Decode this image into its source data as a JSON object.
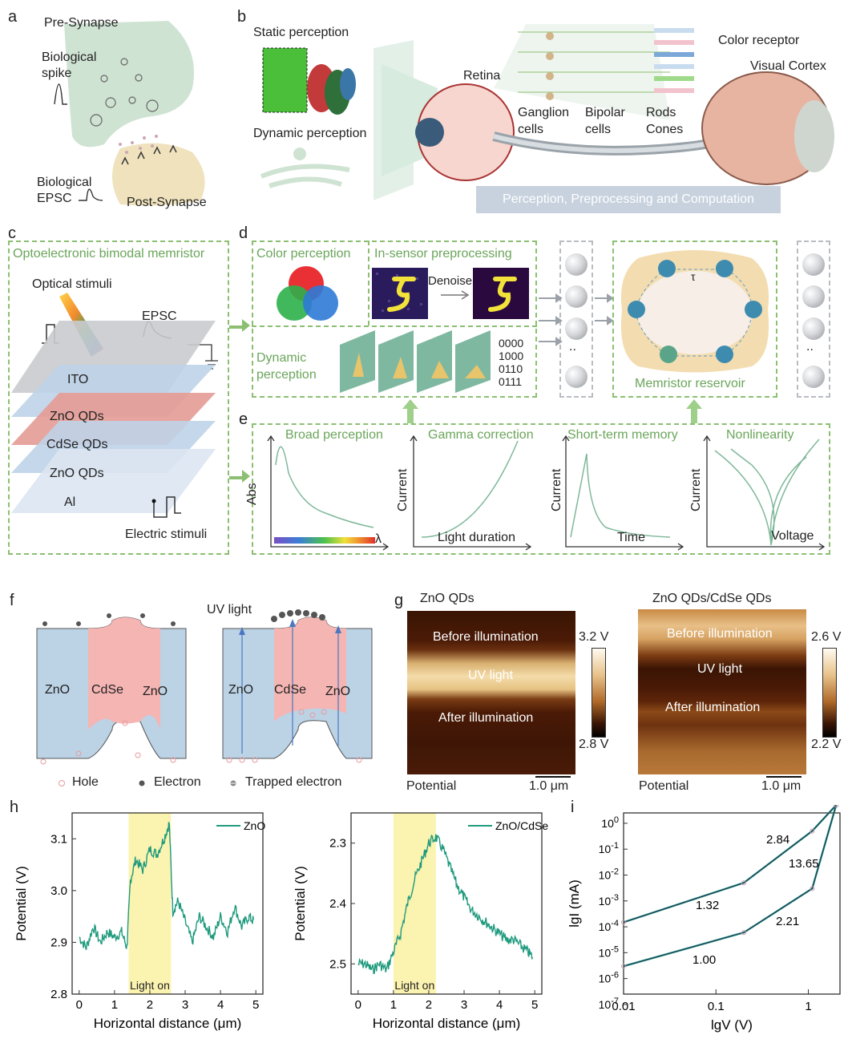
{
  "panels": {
    "a": "a",
    "b": "b",
    "c": "c",
    "d": "d",
    "e": "e",
    "f": "f",
    "g": "g",
    "h": "h",
    "i": "i"
  },
  "a": {
    "pre": "Pre-Synapse",
    "spike": "Biological\nspike",
    "epsc": "Biological\nEPSC",
    "post": "Post-Synapse"
  },
  "b": {
    "static": "Static perception",
    "dynamic": "Dynamic perception",
    "retina": "Retina",
    "ganglion": "Ganglion\ncells",
    "bipolar": "Bipolar\ncells",
    "rods": "Rods\nCones",
    "color_receptor": "Color receptor",
    "cortex": "Visual Cortex",
    "banner": "Perception, Preprocessing and Computation"
  },
  "c": {
    "title": "Optoelectronic bimodal memristor",
    "optical": "Optical stimuli",
    "epsc": "EPSC",
    "layers": [
      "ITO",
      "ZnO QDs",
      "CdSe QDs",
      "ZnO QDs",
      "Al"
    ],
    "electric": "Electric stimuli"
  },
  "d": {
    "color": "Color perception",
    "preprocess": "In-sensor preprocessing",
    "denoise": "Denoise",
    "dynamic": "Dynamic\nperception",
    "codes": [
      "0000",
      "1000",
      "0110",
      "0111"
    ],
    "dots": "..",
    "tau": "τ",
    "reservoir": "Memristor reservoir"
  },
  "e": {
    "titles": [
      "Broad perception",
      "Gamma correction",
      "Short-term memory",
      "Nonlinearity"
    ],
    "ylabels": [
      "Abs",
      "Current",
      "Current",
      "Current"
    ],
    "xlabels": [
      "λ",
      "Light duration",
      "Time",
      "Voltage"
    ]
  },
  "f": {
    "uv": "UV light",
    "left": [
      "ZnO",
      "CdSe",
      "ZnO"
    ],
    "right": [
      "ZnO",
      "CdSe",
      "ZnO"
    ],
    "legend": [
      "Hole",
      "Electron",
      "Trapped electron"
    ]
  },
  "g": {
    "left": {
      "title": "ZnO QDs",
      "bands": [
        "Before illumination",
        "UV light",
        "After illumination"
      ],
      "scale_top": "3.2 V",
      "scale_bottom": "2.8 V",
      "potential": "Potential",
      "bar": "1.0 μm"
    },
    "right": {
      "title": "ZnO QDs/CdSe QDs",
      "bands": [
        "Before illumination",
        "UV light",
        "After illumination"
      ],
      "scale_top": "2.6 V",
      "scale_bottom": "2.2 V",
      "potential": "Potential",
      "bar": "1.0 μm"
    }
  },
  "chart_data": [
    {
      "type": "line",
      "title": "",
      "legend": "ZnO",
      "xlabel": "Horizontal distance (μm)",
      "ylabel": "Potential (V)",
      "xlim": [
        -0.2,
        5.2
      ],
      "ylim": [
        2.8,
        3.15
      ],
      "xticks": [
        "0",
        "1",
        "2",
        "3",
        "4",
        "5"
      ],
      "yticks": [
        "2.8",
        "2.9",
        "3.0",
        "3.1"
      ],
      "highlight": [
        1.4,
        2.6
      ],
      "highlight_label": "Light on",
      "x": [
        0,
        0.2,
        0.4,
        0.6,
        0.8,
        1.0,
        1.2,
        1.35,
        1.45,
        1.6,
        1.8,
        2.0,
        2.2,
        2.4,
        2.55,
        2.65,
        2.8,
        3.0,
        3.2,
        3.4,
        3.6,
        3.8,
        4.0,
        4.2,
        4.4,
        4.6,
        4.8,
        4.95
      ],
      "y": [
        2.91,
        2.89,
        2.93,
        2.9,
        2.92,
        2.91,
        2.92,
        2.89,
        3.02,
        3.06,
        3.04,
        3.08,
        3.07,
        3.1,
        3.13,
        2.96,
        2.98,
        2.94,
        2.9,
        2.95,
        2.93,
        2.91,
        2.95,
        2.92,
        2.97,
        2.93,
        2.95,
        2.94
      ]
    },
    {
      "type": "line",
      "title": "",
      "legend": "ZnO/CdSe",
      "xlabel": "Horizontal distance (μm)",
      "ylabel": "Potential (V)",
      "xlim": [
        -0.2,
        5.2
      ],
      "ylim": [
        2.55,
        2.25
      ],
      "xticks": [
        "0",
        "1",
        "2",
        "3",
        "4",
        "5"
      ],
      "yticks": [
        "2.3",
        "2.4",
        "2.5"
      ],
      "highlight": [
        1.0,
        2.2
      ],
      "highlight_label": "Light on",
      "x": [
        0,
        0.2,
        0.4,
        0.6,
        0.8,
        1.0,
        1.2,
        1.4,
        1.6,
        1.8,
        2.0,
        2.2,
        2.4,
        2.6,
        2.8,
        3.0,
        3.2,
        3.4,
        3.6,
        3.8,
        4.0,
        4.2,
        4.4,
        4.6,
        4.8,
        4.95
      ],
      "y": [
        2.5,
        2.5,
        2.51,
        2.5,
        2.51,
        2.48,
        2.45,
        2.4,
        2.36,
        2.33,
        2.3,
        2.29,
        2.31,
        2.34,
        2.37,
        2.39,
        2.41,
        2.42,
        2.43,
        2.44,
        2.45,
        2.46,
        2.46,
        2.47,
        2.48,
        2.49
      ]
    },
    {
      "type": "scatter",
      "title": "",
      "xlabel": "lgV (V)",
      "ylabel": "lgI (mA)",
      "log": true,
      "xticks": [
        "0.01",
        "0.1",
        "1"
      ],
      "yticks": [
        "10^0",
        "10^-1",
        "10^-2",
        "10^-3",
        "10^-4",
        "10^-5",
        "10^-6",
        "10^-7"
      ],
      "series": [
        {
          "x": [
            0.01,
            0.2,
            1.1,
            2
          ],
          "y": [
            0.00015,
            0.005,
            0.5,
            5
          ]
        },
        {
          "x": [
            0.01,
            0.2,
            1.1,
            2
          ],
          "y": [
            3e-06,
            6e-05,
            0.003,
            5
          ]
        }
      ],
      "slopes": [
        "2.84",
        "13.65",
        "1.32",
        "2.21",
        "1.00"
      ]
    }
  ],
  "colors": {
    "green": "#6aa55a",
    "teal": "#1f9a7d",
    "highlight": "#fbf3b0"
  }
}
